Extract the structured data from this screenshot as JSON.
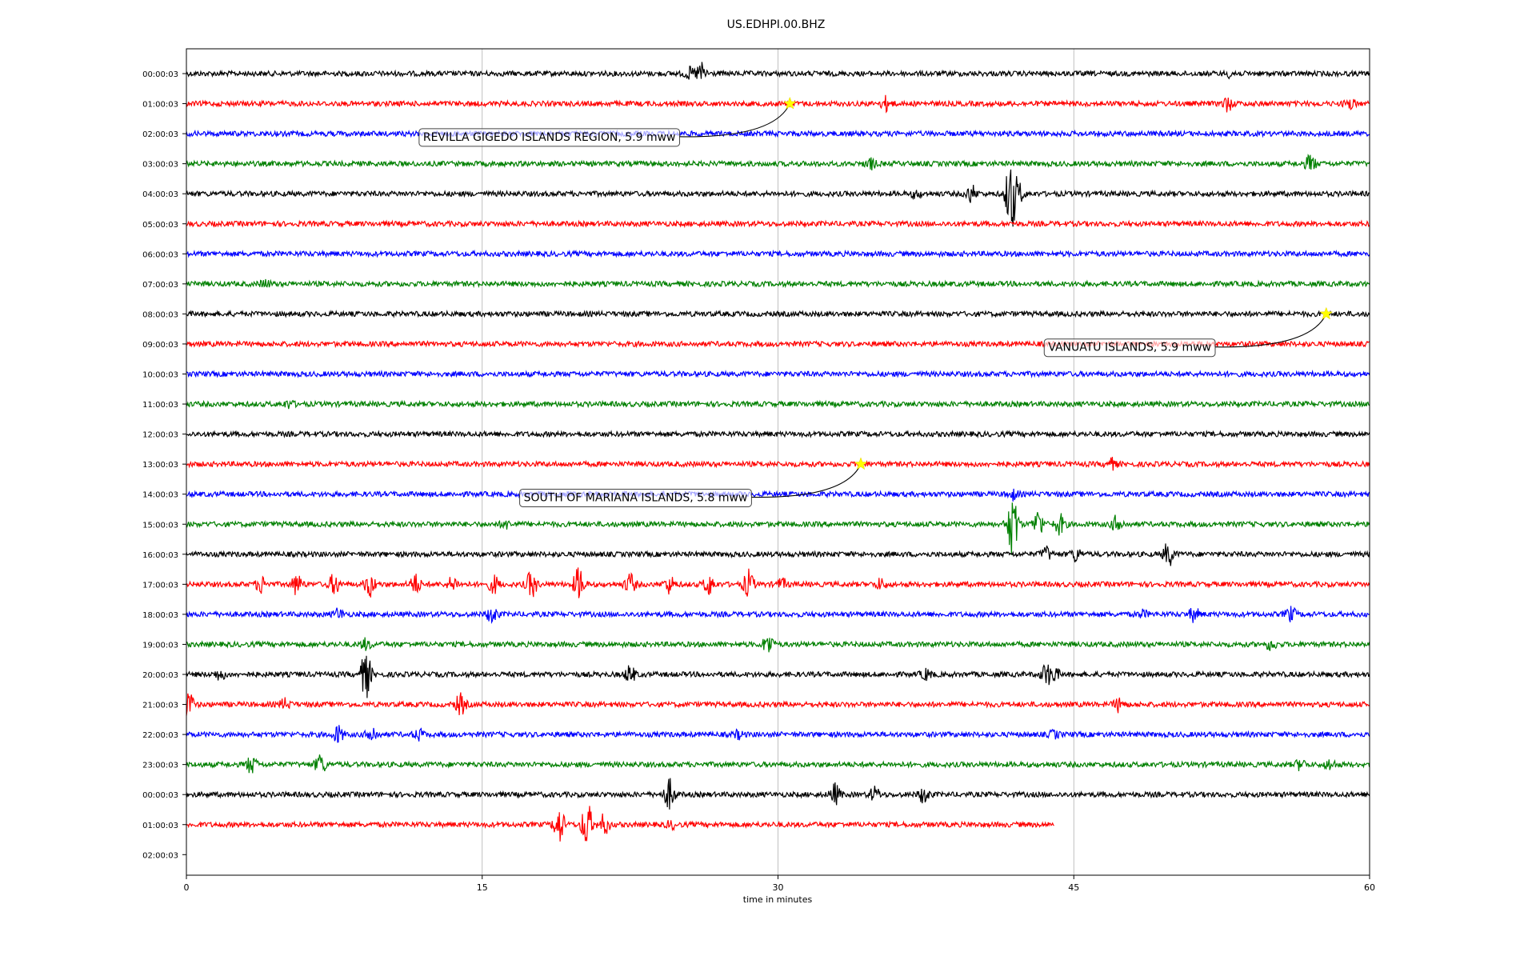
{
  "chart_data": {
    "type": "line",
    "title": "US.EDHPI.00.BHZ",
    "xlabel": "time in minutes",
    "ylabel": "",
    "xlim": [
      0,
      60
    ],
    "x_ticks": [
      0,
      15,
      30,
      45,
      60
    ],
    "grid": "vertical",
    "colors": [
      "#000000",
      "#ff0000",
      "#0000ff",
      "#008000"
    ],
    "row_labels": [
      "00:00:03",
      "01:00:03",
      "02:00:03",
      "03:00:03",
      "04:00:03",
      "05:00:03",
      "06:00:03",
      "07:00:03",
      "08:00:03",
      "09:00:03",
      "10:00:03",
      "11:00:03",
      "12:00:03",
      "13:00:03",
      "14:00:03",
      "15:00:03",
      "16:00:03",
      "17:00:03",
      "18:00:03",
      "19:00:03",
      "20:00:03",
      "21:00:03",
      "22:00:03",
      "23:00:03",
      "00:00:03",
      "01:00:03",
      "02:00:03"
    ],
    "traces": [
      {
        "row": 0,
        "end": 60,
        "events": [
          [
            25.5,
            0.3
          ],
          [
            26.1,
            0.6
          ],
          [
            53,
            0.2
          ]
        ]
      },
      {
        "row": 1,
        "end": 60,
        "events": [
          [
            35.5,
            0.4
          ],
          [
            52.8,
            0.4
          ],
          [
            59,
            0.3
          ]
        ]
      },
      {
        "row": 2,
        "end": 60,
        "events": []
      },
      {
        "row": 3,
        "end": 60,
        "events": [
          [
            34.7,
            0.3
          ],
          [
            57,
            0.5
          ]
        ]
      },
      {
        "row": 4,
        "end": 60,
        "events": [
          [
            37,
            0.2
          ],
          [
            39.8,
            0.5
          ],
          [
            41.8,
            2.2
          ],
          [
            42.2,
            0.6
          ]
        ]
      },
      {
        "row": 5,
        "end": 60,
        "events": []
      },
      {
        "row": 6,
        "end": 60,
        "events": []
      },
      {
        "row": 7,
        "end": 60,
        "events": [
          [
            4,
            0.2
          ]
        ]
      },
      {
        "row": 8,
        "end": 60,
        "events": []
      },
      {
        "row": 9,
        "end": 60,
        "events": []
      },
      {
        "row": 10,
        "end": 60,
        "events": []
      },
      {
        "row": 11,
        "end": 60,
        "events": [
          [
            5.2,
            0.2
          ]
        ]
      },
      {
        "row": 12,
        "end": 60,
        "events": []
      },
      {
        "row": 13,
        "end": 60,
        "events": [
          [
            46.9,
            0.3
          ]
        ]
      },
      {
        "row": 14,
        "end": 60,
        "events": [
          [
            41.9,
            0.3
          ]
        ]
      },
      {
        "row": 15,
        "end": 60,
        "events": [
          [
            16.2,
            0.2
          ],
          [
            41.9,
            2.0
          ],
          [
            43.2,
            0.8
          ],
          [
            44.3,
            0.6
          ],
          [
            47.2,
            0.5
          ]
        ]
      },
      {
        "row": 16,
        "end": 60,
        "events": [
          [
            43.6,
            0.4
          ],
          [
            45.1,
            0.4
          ],
          [
            49.8,
            0.7
          ]
        ]
      },
      {
        "row": 17,
        "end": 60,
        "events": [
          [
            3.8,
            0.5
          ],
          [
            5.6,
            0.6
          ],
          [
            7.5,
            0.6
          ],
          [
            9.3,
            0.7
          ],
          [
            11.6,
            0.6
          ],
          [
            13.5,
            0.4
          ],
          [
            15.6,
            0.5
          ],
          [
            17.5,
            0.8
          ],
          [
            19.9,
            1.0
          ],
          [
            22.5,
            0.6
          ],
          [
            24.5,
            0.5
          ],
          [
            26.5,
            0.6
          ],
          [
            28.5,
            0.8
          ],
          [
            30.2,
            0.3
          ],
          [
            35.2,
            0.3
          ]
        ]
      },
      {
        "row": 18,
        "end": 60,
        "events": [
          [
            7.7,
            0.3
          ],
          [
            15.5,
            0.5
          ],
          [
            48.5,
            0.2
          ],
          [
            51.1,
            0.4
          ],
          [
            56,
            0.4
          ]
        ]
      },
      {
        "row": 19,
        "end": 60,
        "events": [
          [
            9.1,
            0.3
          ],
          [
            29.5,
            0.6
          ],
          [
            55,
            0.3
          ]
        ]
      },
      {
        "row": 20,
        "end": 60,
        "events": [
          [
            1.7,
            0.3
          ],
          [
            9.1,
            1.4
          ],
          [
            22.5,
            0.5
          ],
          [
            37.5,
            0.3
          ],
          [
            43.6,
            0.6
          ],
          [
            44,
            0.4
          ]
        ]
      },
      {
        "row": 21,
        "end": 60,
        "events": [
          [
            0.1,
            0.8
          ],
          [
            5,
            0.3
          ],
          [
            13.9,
            0.6
          ],
          [
            47.3,
            0.4
          ]
        ]
      },
      {
        "row": 22,
        "end": 60,
        "events": [
          [
            7.7,
            0.5
          ],
          [
            9.4,
            0.5
          ],
          [
            11.8,
            0.3
          ],
          [
            28,
            0.2
          ],
          [
            44,
            0.2
          ]
        ]
      },
      {
        "row": 23,
        "end": 60,
        "events": [
          [
            3.3,
            0.5
          ],
          [
            6.8,
            0.6
          ],
          [
            56.5,
            0.3
          ],
          [
            58,
            0.3
          ]
        ]
      },
      {
        "row": 24,
        "end": 60,
        "events": [
          [
            24.5,
            0.9
          ],
          [
            32.9,
            0.6
          ],
          [
            34.9,
            0.4
          ],
          [
            37.4,
            0.5
          ]
        ]
      },
      {
        "row": 25,
        "end": 44,
        "events": [
          [
            18.9,
            1.1
          ],
          [
            20.3,
            1.4
          ],
          [
            21.2,
            0.6
          ],
          [
            24.6,
            0.2
          ]
        ]
      }
    ],
    "annotations": [
      {
        "text": "REVILLA GIGEDO ISLANDS REGION, 5.9 mww",
        "row": 1,
        "x": 30.6,
        "label_row": 2.1,
        "label_x_start": 11.8
      },
      {
        "text": "VANUATU ISLANDS, 5.9 mww",
        "row": 8,
        "x": 57.8,
        "label_row": 9.1,
        "label_x_start": 43.5
      },
      {
        "text": "SOUTH OF MARIANA ISLANDS, 5.8 mww",
        "row": 13,
        "x": 34.2,
        "label_row": 14.1,
        "label_x_start": 16.9
      }
    ],
    "marker_color": "#ffff00"
  }
}
